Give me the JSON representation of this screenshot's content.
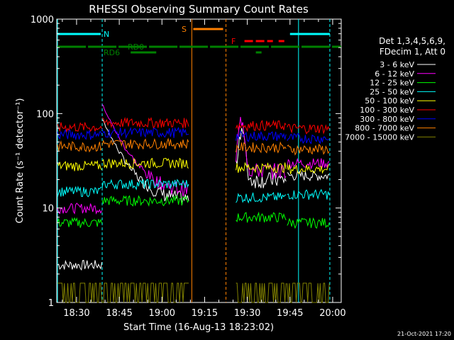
{
  "chart_data": {
    "type": "line",
    "title": "RHESSI Observing Summary Count Rates",
    "xlabel": "Start Time (16-Aug-13 18:23:02)",
    "ylabel": "Count Rate (s⁻¹ detector⁻¹)",
    "ylog": true,
    "ylim": [
      1,
      1000
    ],
    "xlim": [
      "18:23:02",
      "20:03:00"
    ],
    "xticks": [
      "18:30",
      "18:45",
      "19:00",
      "19:15",
      "19:30",
      "19:45",
      "20:00"
    ],
    "yticks": [
      "1",
      "10",
      "100",
      "1000"
    ],
    "legend_header": [
      "Det 1,3,4,5,6,9,",
      "FDecim 1, Att 0"
    ],
    "legend_position": "right",
    "footer_date": "21-Oct-2021 17:20",
    "bars": [
      {
        "label": "N",
        "color": "#00ffff"
      },
      {
        "label": "S",
        "color": "#ff8000"
      },
      {
        "label": "F",
        "color": "#ff0000"
      },
      {
        "label": "RD0",
        "color": "#008000"
      },
      {
        "label": "RD6",
        "color": "#008000"
      }
    ],
    "series": [
      {
        "name": "3 - 6 keV",
        "color": "#ffffff",
        "base": [
          2.5,
          75,
          20,
          22
        ]
      },
      {
        "name": "6 - 12 keV",
        "color": "#ff00ff",
        "base": [
          10,
          110,
          25,
          30
        ]
      },
      {
        "name": "12 - 25 keV",
        "color": "#00ff00",
        "base": [
          7,
          12,
          8,
          7
        ]
      },
      {
        "name": "25 - 50 keV",
        "color": "#00ffff",
        "base": [
          15,
          18,
          13,
          14
        ]
      },
      {
        "name": "50 - 100 keV",
        "color": "#ffff00",
        "base": [
          28,
          30,
          27,
          26
        ]
      },
      {
        "name": "100 - 300 keV",
        "color": "#ff0000",
        "base": [
          72,
          80,
          75,
          70
        ]
      },
      {
        "name": "300 - 800 keV",
        "color": "#0000ff",
        "base": [
          60,
          63,
          58,
          55
        ]
      },
      {
        "name": "800 - 7000 keV",
        "color": "#ff8000",
        "base": [
          45,
          48,
          44,
          42
        ]
      },
      {
        "name": "7000 - 15000 keV",
        "color": "#808000",
        "base": [
          1,
          1.5,
          1,
          1.5
        ]
      }
    ]
  }
}
